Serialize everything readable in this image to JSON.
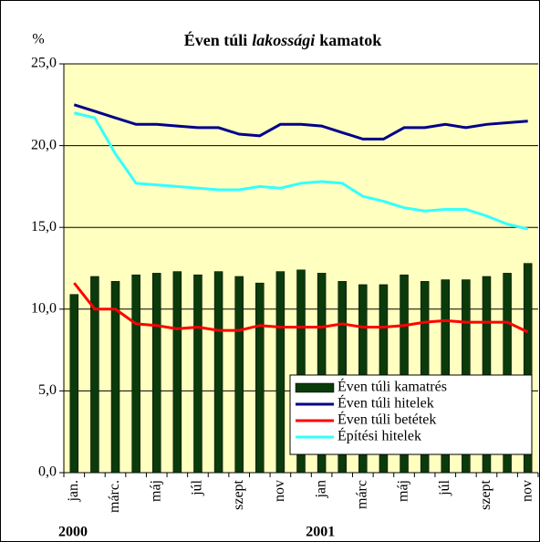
{
  "chart_data": {
    "type": "bar_line",
    "title": [
      {
        "text": "Éven túli"
      },
      {
        "text": "lakossági",
        "italic": true
      },
      {
        "text": "kamatok"
      }
    ],
    "y_axis_label": "%",
    "categories": [
      "jan.",
      null,
      "márc.",
      null,
      "máj",
      null,
      "júl",
      null,
      "szept",
      null,
      "nov",
      null,
      "jan",
      null,
      "márc",
      null,
      "máj",
      null,
      "júl",
      null,
      "szept",
      null,
      "nov"
    ],
    "year_labels": [
      {
        "index": 0,
        "label": "2000"
      },
      {
        "index": 12,
        "label": "2001"
      }
    ],
    "series": [
      {
        "name": "Éven túli kamatrés",
        "kind": "bar",
        "color": "#0b3a0b",
        "values": [
          10.9,
          12.0,
          11.7,
          12.1,
          12.2,
          12.3,
          12.1,
          12.3,
          12.0,
          11.6,
          12.3,
          12.4,
          12.2,
          11.7,
          11.5,
          11.5,
          12.1,
          11.7,
          11.8,
          11.8,
          12.0,
          12.2,
          12.8
        ]
      },
      {
        "name": "Éven túli hitelek",
        "kind": "line",
        "color": "#00008b",
        "values": [
          22.5,
          22.1,
          21.7,
          21.3,
          21.3,
          21.2,
          21.1,
          21.1,
          20.7,
          20.6,
          21.3,
          21.3,
          21.2,
          20.8,
          20.4,
          20.4,
          21.1,
          21.1,
          21.3,
          21.1,
          21.3,
          21.4,
          21.5
        ]
      },
      {
        "name": "Éven túli betétek",
        "kind": "line",
        "color": "#ff0000",
        "values": [
          11.6,
          10.0,
          10.0,
          9.1,
          9.0,
          8.8,
          8.9,
          8.7,
          8.7,
          9.0,
          8.9,
          8.9,
          8.9,
          9.1,
          8.9,
          8.9,
          9.0,
          9.2,
          9.3,
          9.2,
          9.2,
          9.2,
          8.6
        ]
      },
      {
        "name": "Építési hitelek",
        "kind": "line",
        "color": "#33ffff",
        "values": [
          22.0,
          21.7,
          19.5,
          17.7,
          17.6,
          17.5,
          17.4,
          17.3,
          17.3,
          17.5,
          17.4,
          17.7,
          17.8,
          17.7,
          16.9,
          16.6,
          16.2,
          16.0,
          16.1,
          16.1,
          15.7,
          15.2,
          14.9
        ]
      }
    ],
    "ylim": [
      0,
      25
    ],
    "yticks": [
      {
        "value": 0,
        "label": "0,0"
      },
      {
        "value": 5,
        "label": "5,0"
      },
      {
        "value": 10,
        "label": "10,0"
      },
      {
        "value": 15,
        "label": "15,0"
      },
      {
        "value": 20,
        "label": "20,0"
      },
      {
        "value": 25,
        "label": "25,0"
      }
    ],
    "grid": true,
    "plot_background": "#ffffc0",
    "legend": "lower right"
  }
}
